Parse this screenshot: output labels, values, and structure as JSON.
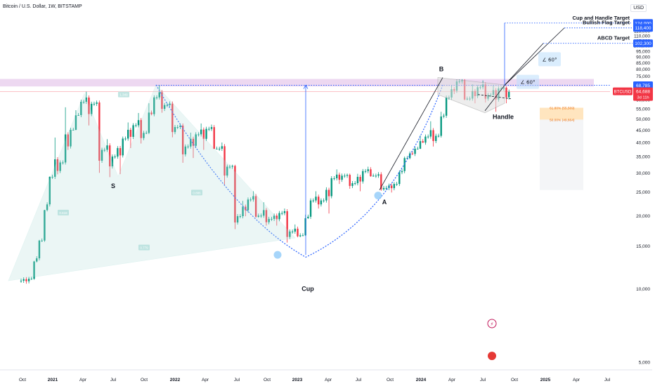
{
  "header": {
    "symbol_title": "Bitcoin / U.S. Dollar, 1W, BITSTAMP",
    "currency": "USD"
  },
  "chart_data": {
    "type": "candlestick",
    "symbol": "BTCUSD",
    "y_scale": "log",
    "ylim": [
      4800,
      135000
    ],
    "y_ticks": [
      5000,
      10000,
      15000,
      20000,
      25000,
      30000,
      35000,
      40000,
      45000,
      50000,
      55000,
      60000,
      65000,
      70000,
      75000,
      80000,
      85000,
      90000,
      95000,
      100000,
      105000,
      110000,
      115000,
      120000,
      125000
    ],
    "x_ticks": [
      "Oct",
      "2021",
      "Apr",
      "Jul",
      "Oct",
      "2022",
      "Apr",
      "Jul",
      "Oct",
      "2023",
      "Apr",
      "Jul",
      "Oct",
      "2024",
      "Apr",
      "Jul",
      "Oct",
      "2025",
      "Apr",
      "Jul"
    ],
    "current_price": {
      "value": "64,688",
      "countdown": "3d 11h"
    },
    "price_labels": [
      {
        "value": "124,000",
        "label": "Cup and Handle Target"
      },
      {
        "value": "118,400",
        "label": "Bullish Flag Target"
      },
      {
        "value": "102,300",
        "label": "ABCD Target"
      },
      {
        "value": "68,785",
        "label": ""
      }
    ],
    "resistance_zone": [
      68000,
      73000
    ],
    "pattern_labels": [
      "S",
      "Cup",
      "A",
      "B",
      "Handle"
    ],
    "angle_labels": [
      "60°",
      "60°"
    ],
    "fib_levels": [
      {
        "label": "61.80% (55,569)",
        "value": 55569
      },
      {
        "label": "50.00% (49,664)",
        "value": 49664
      }
    ],
    "harmonic_labels": [
      "0.618",
      "0.886",
      "0.779",
      "1.349"
    ],
    "colors": {
      "up": "#089981",
      "down": "#f23645",
      "accent": "#2962ff",
      "zone": "#e1bee7",
      "text": "#131722"
    },
    "series": [
      {
        "name": "BTCUSD",
        "ohlc": [
          [
            "2020-10",
            10800,
            11200,
            10500,
            11000
          ],
          [
            "2020-11",
            11000,
            15900,
            10900,
            15800
          ],
          [
            "2020-12",
            15800,
            29000,
            15600,
            28900
          ],
          [
            "2021-01",
            28900,
            41900,
            28000,
            33100
          ],
          [
            "2021-02",
            33100,
            58300,
            32000,
            45100
          ],
          [
            "2021-03",
            45100,
            61700,
            44900,
            58800
          ],
          [
            "2021-04",
            58800,
            64800,
            47000,
            57700
          ],
          [
            "2021-05",
            57700,
            59500,
            30000,
            37300
          ],
          [
            "2021-06",
            37300,
            41300,
            28800,
            35000
          ],
          [
            "2021-07",
            35000,
            42300,
            29300,
            41500
          ],
          [
            "2021-08",
            41500,
            50500,
            37300,
            47100
          ],
          [
            "2021-09",
            47100,
            52900,
            39600,
            43800
          ],
          [
            "2021-10",
            43800,
            67000,
            43300,
            61300
          ],
          [
            "2021-11",
            61300,
            69000,
            53000,
            57000
          ],
          [
            "2021-12",
            57000,
            59000,
            42000,
            46300
          ],
          [
            "2022-01",
            46300,
            47900,
            33000,
            38500
          ],
          [
            "2022-02",
            38500,
            45800,
            34300,
            43200
          ],
          [
            "2022-03",
            43200,
            48200,
            37300,
            45500
          ],
          [
            "2022-04",
            45500,
            47400,
            37600,
            37700
          ],
          [
            "2022-05",
            37700,
            40000,
            26700,
            31800
          ],
          [
            "2022-06",
            31800,
            32400,
            17600,
            19900
          ],
          [
            "2022-07",
            19900,
            24600,
            18800,
            23300
          ],
          [
            "2022-08",
            23300,
            25200,
            19600,
            20000
          ],
          [
            "2022-09",
            20000,
            22700,
            18200,
            19400
          ],
          [
            "2022-10",
            19400,
            20900,
            18200,
            20500
          ],
          [
            "2022-11",
            20500,
            21400,
            15500,
            17200
          ],
          [
            "2022-12",
            17200,
            18400,
            16300,
            16600
          ],
          [
            "2023-01",
            16600,
            23900,
            16500,
            23100
          ],
          [
            "2023-02",
            23100,
            25200,
            21400,
            23100
          ],
          [
            "2023-03",
            23100,
            29200,
            19600,
            28500
          ],
          [
            "2023-04",
            28500,
            31000,
            27000,
            29200
          ],
          [
            "2023-05",
            29200,
            29800,
            25800,
            27200
          ],
          [
            "2023-06",
            27200,
            31400,
            24800,
            30500
          ],
          [
            "2023-07",
            30500,
            31800,
            28900,
            29200
          ],
          [
            "2023-08",
            29200,
            30200,
            25300,
            26000
          ],
          [
            "2023-09",
            26000,
            27500,
            24900,
            27000
          ],
          [
            "2023-10",
            27000,
            35000,
            26500,
            34500
          ],
          [
            "2023-11",
            34500,
            38400,
            34100,
            37700
          ],
          [
            "2023-12",
            37700,
            44700,
            37600,
            42300
          ],
          [
            "2024-01",
            42300,
            48900,
            38500,
            42600
          ],
          [
            "2024-02",
            42600,
            64000,
            41900,
            61200
          ],
          [
            "2024-03",
            61200,
            73800,
            59300,
            71300
          ],
          [
            "2024-04",
            71300,
            72800,
            59600,
            60600
          ],
          [
            "2024-05",
            60600,
            71900,
            56600,
            67500
          ],
          [
            "2024-06",
            67500,
            72000,
            58400,
            62700
          ],
          [
            "2024-07",
            62700,
            70000,
            53500,
            66700
          ],
          [
            "2024-08",
            66700,
            68000,
            58000,
            64700
          ]
        ]
      }
    ]
  }
}
